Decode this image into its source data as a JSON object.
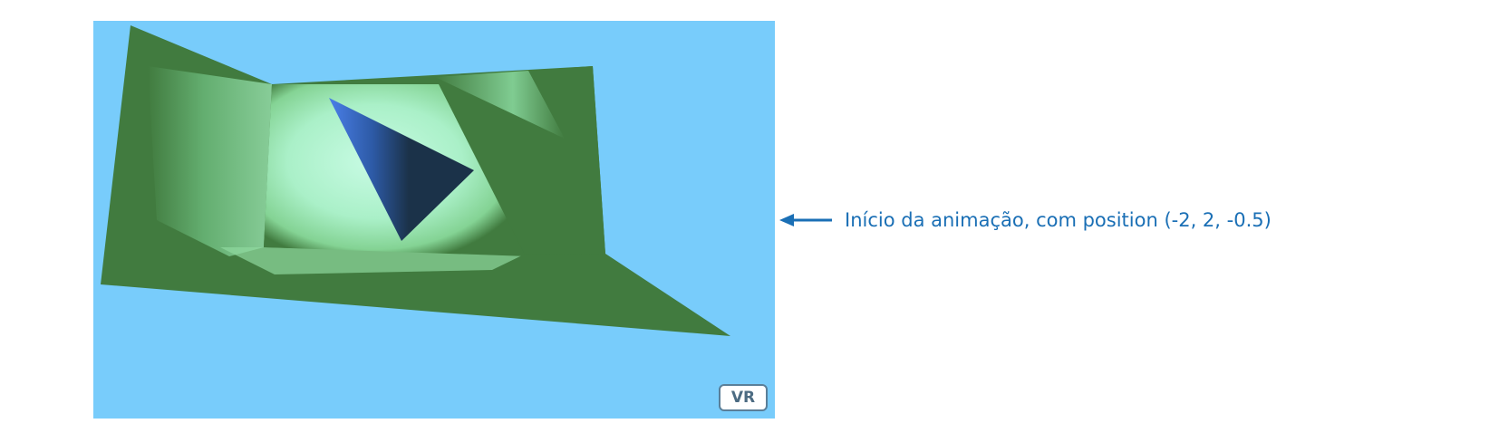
{
  "viewer": {
    "vr_button_label": "VR",
    "colors": {
      "sky": "#78ccfb",
      "floor_wall": "#417b3f",
      "lit_area": "#b4f2cf",
      "cone": "#1b3249",
      "cone_highlight": "#4a7fe8"
    }
  },
  "annotation": {
    "text": "Início da animação, com position (-2, 2, -0.5)",
    "color": "#1a6fb5",
    "arrow_icon": "arrow-left-icon"
  }
}
